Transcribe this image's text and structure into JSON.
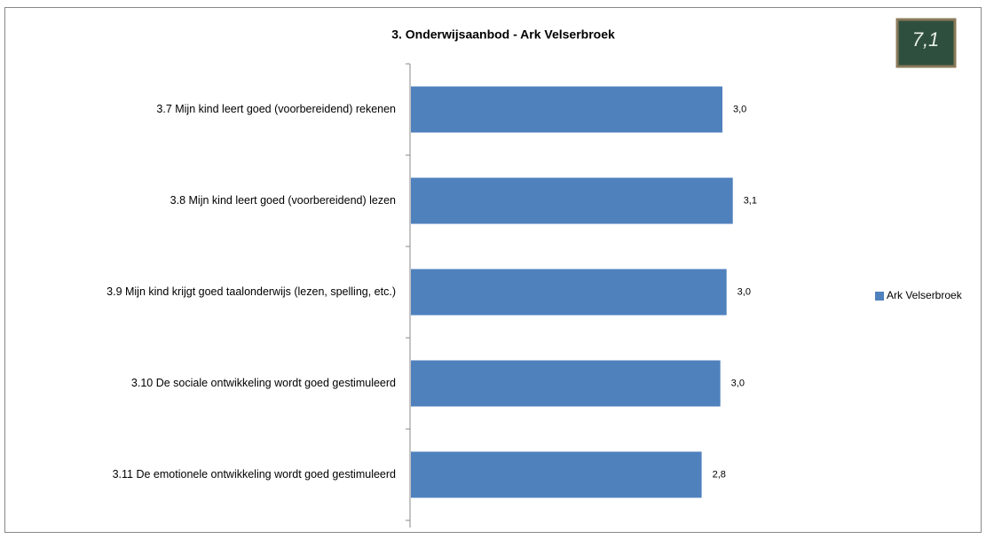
{
  "chart_data": {
    "type": "hbar",
    "title": "3. Onderwijsaanbod - Ark Velserbroek",
    "badge": "7,1",
    "categories": [
      "3.7 Mijn kind leert goed (voorbereidend) rekenen",
      "3.8 Mijn kind leert goed (voorbereidend) lezen",
      "3.9 Mijn kind krijgt goed taalonderwijs (lezen, spelling, etc.)",
      "3.10 De sociale ontwikkeling wordt goed gestimuleerd",
      "3.11 De emotionele ontwikkeling wordt goed gestimuleerd"
    ],
    "series": [
      {
        "name": "Ark Velserbroek",
        "color": "#4f81bd",
        "values": [
          3.0,
          3.1,
          3.04,
          2.98,
          2.8
        ],
        "value_labels": [
          "3,0",
          "3,1",
          "3,0",
          "3,0",
          "2,8"
        ]
      }
    ],
    "legend": "right"
  }
}
